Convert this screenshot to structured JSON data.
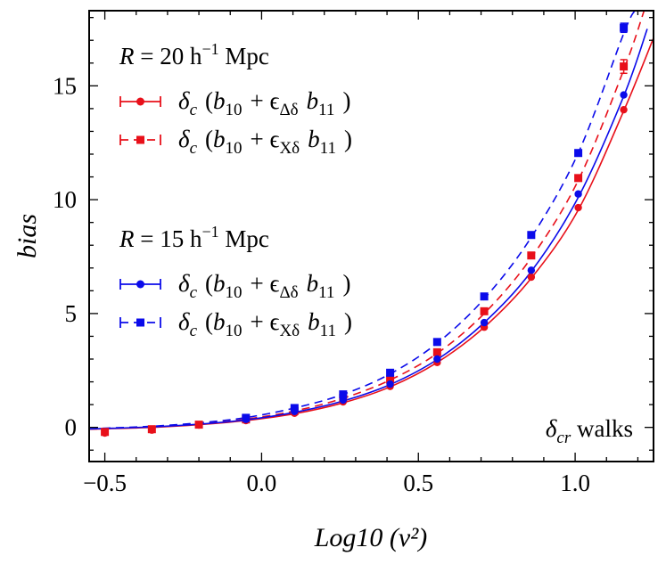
{
  "chart_data": {
    "type": "scatter",
    "xlabel": "Log10 (ν²)",
    "ylabel": "bias",
    "xlim": [
      -0.55,
      1.25
    ],
    "ylim": [
      -1.5,
      18.3
    ],
    "x_ticks": [
      -0.5,
      0.0,
      0.5,
      1.0
    ],
    "x_tick_labels": [
      "−0.5",
      "0.0",
      "0.5",
      "1.0"
    ],
    "y_ticks": [
      0,
      5,
      10,
      15
    ],
    "y_tick_labels": [
      "0",
      "5",
      "10",
      "15"
    ],
    "annotation": "δcr walks",
    "legend": {
      "groups": [
        {
          "title": "R = 20 h⁻¹ Mpc",
          "entries": [
            {
              "label": "δc (b10 + εΔδ b11 )",
              "color": "#e8101a",
              "marker": "circle",
              "line": "solid"
            },
            {
              "label": "δc (b10 + εXδ b11 )",
              "color": "#e8101a",
              "marker": "square",
              "line": "dashed"
            }
          ]
        },
        {
          "title": "R = 15 h⁻¹ Mpc",
          "entries": [
            {
              "label": "δc (b10 + εΔδ b11 )",
              "color": "#0b0bea",
              "marker": "circle",
              "line": "solid"
            },
            {
              "label": "δc (b10 + εXδ b11 )",
              "color": "#0b0bea",
              "marker": "square",
              "line": "dashed"
            }
          ]
        }
      ]
    },
    "series": [
      {
        "name": "R=20 εΔδ",
        "color": "#e8101a",
        "marker": "circle",
        "line": "solid",
        "x": [
          -0.5,
          -0.35,
          -0.2,
          -0.05,
          0.105,
          0.26,
          0.41,
          0.56,
          0.71,
          0.86,
          1.01,
          1.155
        ],
        "y": [
          -0.25,
          -0.12,
          0.1,
          0.3,
          0.62,
          1.12,
          1.8,
          2.85,
          4.4,
          6.6,
          9.65,
          13.95
        ]
      },
      {
        "name": "R=20 εXδ",
        "color": "#e8101a",
        "marker": "square",
        "line": "dashed",
        "x": [
          -0.5,
          -0.35,
          -0.2,
          -0.05,
          0.105,
          0.26,
          0.41,
          0.56,
          0.71,
          0.86,
          1.01,
          1.155
        ],
        "y": [
          -0.2,
          -0.08,
          0.12,
          0.35,
          0.72,
          1.3,
          2.1,
          3.3,
          5.1,
          7.55,
          10.95,
          15.85
        ]
      },
      {
        "name": "R=15 εΔδ",
        "color": "#0b0bea",
        "marker": "circle",
        "line": "solid",
        "x": [
          -0.05,
          0.105,
          0.26,
          0.41,
          0.56,
          0.71,
          0.86,
          1.01,
          1.155
        ],
        "y": [
          0.35,
          0.7,
          1.2,
          1.9,
          3.0,
          4.6,
          6.9,
          10.25,
          14.6
        ]
      },
      {
        "name": "R=15 εXδ",
        "color": "#0b0bea",
        "marker": "square",
        "line": "dashed",
        "x": [
          -0.05,
          0.105,
          0.26,
          0.41,
          0.56,
          0.71,
          0.86,
          1.01,
          1.155
        ],
        "y": [
          0.42,
          0.85,
          1.45,
          2.4,
          3.75,
          5.75,
          8.45,
          12.05,
          17.55
        ]
      }
    ],
    "fits": [
      {
        "color": "#e8101a",
        "line": "solid",
        "x": [
          -0.55,
          -0.35,
          -0.2,
          -0.05,
          0.105,
          0.26,
          0.41,
          0.56,
          0.71,
          0.86,
          1.01,
          1.155,
          1.25
        ],
        "y": [
          -0.08,
          0.0,
          0.12,
          0.3,
          0.6,
          1.08,
          1.78,
          2.85,
          4.4,
          6.55,
          9.55,
          13.9,
          17.1
        ]
      },
      {
        "color": "#e8101a",
        "line": "dashed",
        "x": [
          -0.55,
          -0.35,
          -0.2,
          -0.05,
          0.105,
          0.26,
          0.41,
          0.56,
          0.71,
          0.86,
          1.01,
          1.155,
          1.22
        ],
        "y": [
          -0.08,
          0.02,
          0.15,
          0.36,
          0.72,
          1.28,
          2.08,
          3.25,
          5.0,
          7.45,
          10.85,
          15.7,
          18.3
        ]
      },
      {
        "color": "#0b0bea",
        "line": "solid",
        "x": [
          -0.55,
          -0.35,
          -0.2,
          -0.05,
          0.105,
          0.26,
          0.41,
          0.56,
          0.71,
          0.86,
          1.01,
          1.155,
          1.23
        ],
        "y": [
          -0.07,
          0.02,
          0.14,
          0.33,
          0.66,
          1.16,
          1.88,
          2.98,
          4.6,
          6.85,
          10.1,
          14.55,
          17.5
        ]
      },
      {
        "color": "#0b0bea",
        "line": "dashed",
        "x": [
          -0.55,
          -0.35,
          -0.2,
          -0.05,
          0.105,
          0.26,
          0.41,
          0.56,
          0.71,
          0.86,
          1.01,
          1.155,
          1.19
        ],
        "y": [
          -0.06,
          0.05,
          0.2,
          0.43,
          0.85,
          1.45,
          2.35,
          3.7,
          5.65,
          8.35,
          12.05,
          17.3,
          18.3
        ]
      }
    ],
    "error_bars": [
      {
        "x": 1.155,
        "y": 15.85,
        "err": 0.3,
        "color": "#e8101a"
      },
      {
        "x": 1.155,
        "y": 17.55,
        "err": 0.2,
        "color": "#0b0bea"
      }
    ]
  }
}
